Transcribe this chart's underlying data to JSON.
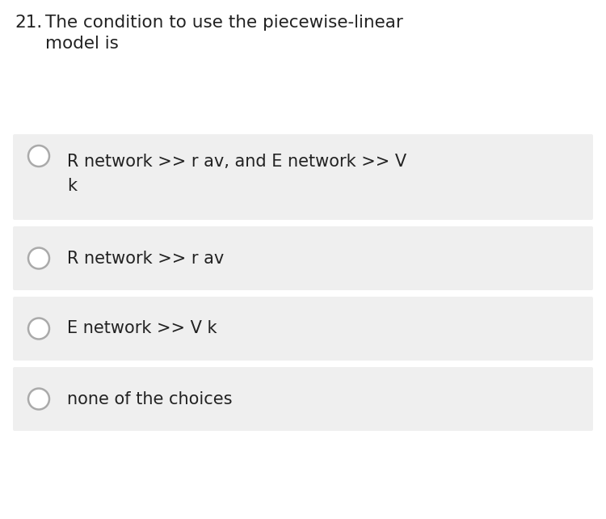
{
  "question_number": "21.",
  "question_text_line1": "The condition to use the piecewise-linear",
  "question_text_line2": "model is",
  "options": [
    [
      "R network >> r av, and E network >> V",
      "k"
    ],
    [
      "R network >> r av"
    ],
    [
      "E network >> V k"
    ],
    [
      "none of the choices"
    ]
  ],
  "bg_color": "#ffffff",
  "option_bg_color": "#efefef",
  "text_color": "#222222",
  "circle_edge_color": "#aaaaaa",
  "font_size_question": 15.5,
  "font_size_option": 15,
  "fig_width": 7.5,
  "fig_height": 6.42,
  "dpi": 100
}
